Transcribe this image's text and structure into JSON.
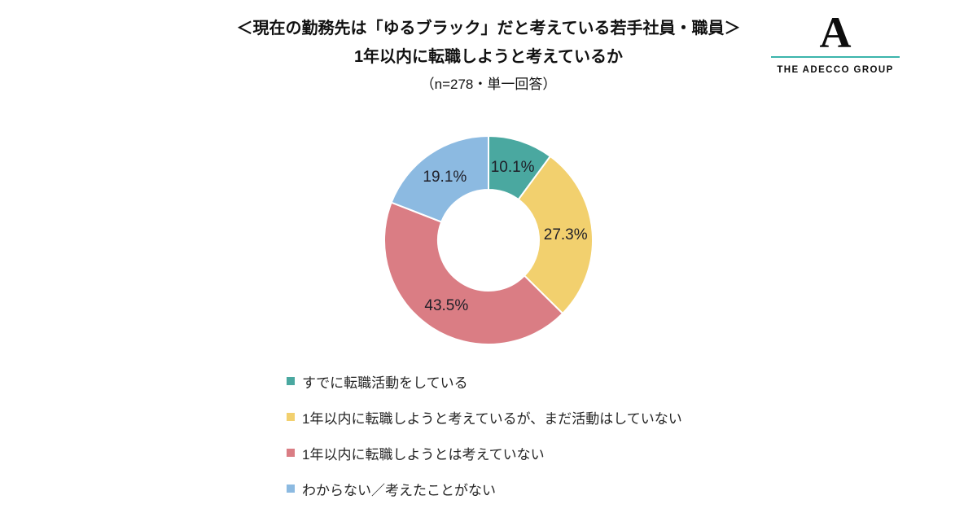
{
  "page": {
    "background": "#ffffff"
  },
  "header": {
    "title_line1": "＜現在の勤務先は「ゆるブラック」だと考えている若手社員・職員＞",
    "title_line2": "1年以内に転職しようと考えているか",
    "sample_note": "（n=278・単一回答）"
  },
  "logo": {
    "mark": "A",
    "name": "THE ADECCO GROUP",
    "accent_color": "#3CB4AB"
  },
  "chart_data": {
    "type": "pie",
    "subtype": "donut",
    "title": "＜現在の勤務先は「ゆるブラック」だと考えている若手社員・職員＞ 1年以内に転職しようと考えているか",
    "sample_note": "（n=278・単一回答）",
    "n": 278,
    "direction": "clockwise",
    "start_angle_deg": 0,
    "labels": [
      "すでに転職活動をしている",
      "1年以内に転職しようと考えているが、まだ活動はしていない",
      "1年以内に転職しようとは考えていない",
      "わからない／考えたことがない"
    ],
    "values": [
      10.1,
      27.3,
      43.5,
      19.1
    ],
    "value_labels": [
      "10.1%",
      "27.3%",
      "43.5%",
      "19.1%"
    ],
    "colors": [
      "#4AA8A0",
      "#F2D06E",
      "#DA7D84",
      "#8CBAE1"
    ],
    "legend_position": "bottom"
  }
}
